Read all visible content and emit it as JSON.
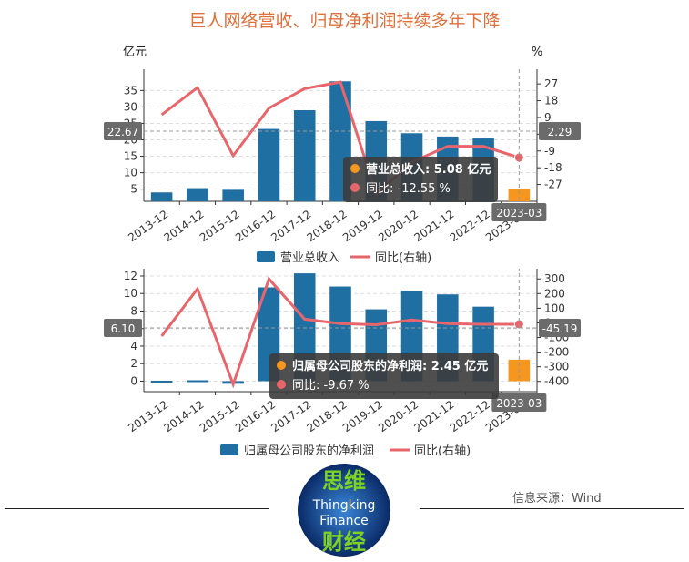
{
  "title": "巨人网络营收、归母净利润持续多年下降",
  "source": "信息来源：Wind",
  "logo": {
    "line1": "思维",
    "line2": "Thingking",
    "line3": "Finance",
    "line4": "财经"
  },
  "colors": {
    "bar": "#1f6fa3",
    "highlight_bar": "#f5961e",
    "line": "#e8666b",
    "title": "#e0703a"
  },
  "chart_data": [
    {
      "type": "bar",
      "left_unit": "亿元",
      "right_unit": "%",
      "categories": [
        "2013-12",
        "2014-12",
        "2015-12",
        "2016-12",
        "2017-12",
        "2018-12",
        "2019-12",
        "2020-12",
        "2021-12",
        "2022-12",
        "2023-03"
      ],
      "series": [
        {
          "name": "营业总收入",
          "axis": "left",
          "values": [
            4.0,
            5.3,
            4.8,
            23.3,
            29.0,
            37.8,
            25.7,
            22.0,
            21.0,
            20.4,
            5.08
          ]
        },
        {
          "name": "同比(右轴)",
          "axis": "right",
          "values": [
            10.5,
            25.0,
            -11.5,
            14.0,
            24.5,
            28.0,
            -32.0,
            -15.0,
            -6.5,
            -6.5,
            -12.55
          ]
        }
      ],
      "ylim_left": [
        1.3,
        38.7
      ],
      "yticks_left": [
        5,
        10,
        15,
        20,
        25,
        30,
        35
      ],
      "ylim_right": [
        -36,
        30
      ],
      "yticks_right": [
        27,
        18,
        9,
        0,
        -9,
        -18,
        -27
      ],
      "crosshair": {
        "left_label": "22.67",
        "right_label": "2.29",
        "category_label": "2023-03"
      },
      "tooltip": {
        "rows": [
          {
            "text": "营业总收入: 5.08  亿元",
            "bold": true
          },
          {
            "text": "同比: -12.55  %",
            "bold": false
          }
        ]
      }
    },
    {
      "type": "bar",
      "categories": [
        "2013-12",
        "2014-12",
        "2015-12",
        "2016-12",
        "2017-12",
        "2018-12",
        "2019-12",
        "2020-12",
        "2021-12",
        "2022-12",
        "2023-03"
      ],
      "series": [
        {
          "name": "归属母公司股东的净利润",
          "axis": "left",
          "values": [
            0.05,
            0.1,
            -0.3,
            10.7,
            12.3,
            10.8,
            8.2,
            10.3,
            9.9,
            8.5,
            2.45
          ]
        },
        {
          "name": "同比(右轴)",
          "axis": "right",
          "values": [
            -90,
            232,
            -420,
            300,
            25,
            -5,
            -13,
            20,
            -5,
            -10,
            -9.67
          ]
        }
      ],
      "ylim_left": [
        -1.2,
        12
      ],
      "yticks_left": [
        0,
        2,
        4,
        6,
        8,
        10,
        12
      ],
      "ylim_right": [
        -470,
        320
      ],
      "yticks_right": [
        300,
        200,
        100,
        0,
        -100,
        -200,
        -300,
        -400
      ],
      "crosshair": {
        "left_label": "6.10",
        "right_label": "-45.19",
        "category_label": "2023-03"
      },
      "tooltip": {
        "rows": [
          {
            "text": "归属母公司股东的净利润: 2.45  亿元",
            "bold": true
          },
          {
            "text": "同比: -9.67  %",
            "bold": false
          }
        ]
      }
    }
  ]
}
